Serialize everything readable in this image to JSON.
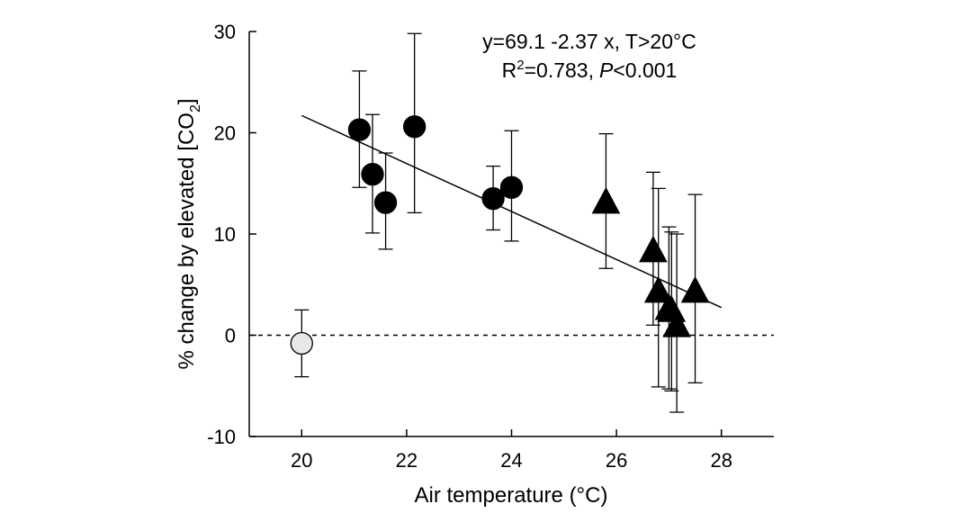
{
  "chart_data": {
    "type": "scatter",
    "xlabel": "Air temperature (°C)",
    "ylabel_parts": {
      "main": "% change by elevated [CO",
      "sub": "2",
      "close": "]"
    },
    "xlim": [
      19,
      29
    ],
    "ylim": [
      -10,
      30
    ],
    "xticks": [
      20,
      22,
      24,
      26,
      28
    ],
    "yticks": [
      -10,
      0,
      10,
      20,
      30
    ],
    "reference_line": {
      "y": 0,
      "style": "dashed"
    },
    "regression": {
      "intercept": 69.1,
      "slope": -2.37,
      "x_start": 20,
      "x_end": 28.0,
      "annotation_line1": "y=69.1 -2.37 x, T>20°C",
      "annotation_r_main": "R",
      "annotation_r_sup": "2",
      "annotation_r_rest": "=0.783,",
      "annotation_p_italic": "P",
      "annotation_p_rest": "<0.001"
    },
    "series": [
      {
        "name": "open circle",
        "marker": "circle",
        "color": "#e8e8e8",
        "points": [
          {
            "x": 20.0,
            "y": -0.8,
            "err_low": -4.1,
            "err_high": 2.5
          }
        ]
      },
      {
        "name": "filled circles",
        "marker": "circle",
        "color": "#000000",
        "points": [
          {
            "x": 21.1,
            "y": 20.3,
            "err_low": 14.6,
            "err_high": 26.1
          },
          {
            "x": 21.35,
            "y": 15.9,
            "err_low": 10.1,
            "err_high": 21.8
          },
          {
            "x": 21.6,
            "y": 13.1,
            "err_low": 8.5,
            "err_high": 18.0
          },
          {
            "x": 22.15,
            "y": 20.6,
            "err_low": 12.1,
            "err_high": 29.8
          },
          {
            "x": 23.65,
            "y": 13.5,
            "err_low": 10.4,
            "err_high": 16.7
          },
          {
            "x": 24.0,
            "y": 14.6,
            "err_low": 9.3,
            "err_high": 20.2
          }
        ]
      },
      {
        "name": "filled triangles",
        "marker": "triangle",
        "color": "#000000",
        "points": [
          {
            "x": 25.8,
            "y": 13.0,
            "err_low": 6.6,
            "err_high": 19.9
          },
          {
            "x": 26.7,
            "y": 8.2,
            "err_low": 1.0,
            "err_high": 16.1
          },
          {
            "x": 26.8,
            "y": 4.2,
            "err_low": -5.1,
            "err_high": 14.5
          },
          {
            "x": 27.0,
            "y": 2.5,
            "err_low": -5.3,
            "err_high": 10.7
          },
          {
            "x": 27.05,
            "y": 2.3,
            "err_low": -5.5,
            "err_high": 10.2
          },
          {
            "x": 27.15,
            "y": 0.8,
            "err_low": -7.6,
            "err_high": 10.0
          },
          {
            "x": 27.5,
            "y": 4.2,
            "err_low": -4.7,
            "err_high": 13.9
          }
        ]
      }
    ]
  }
}
